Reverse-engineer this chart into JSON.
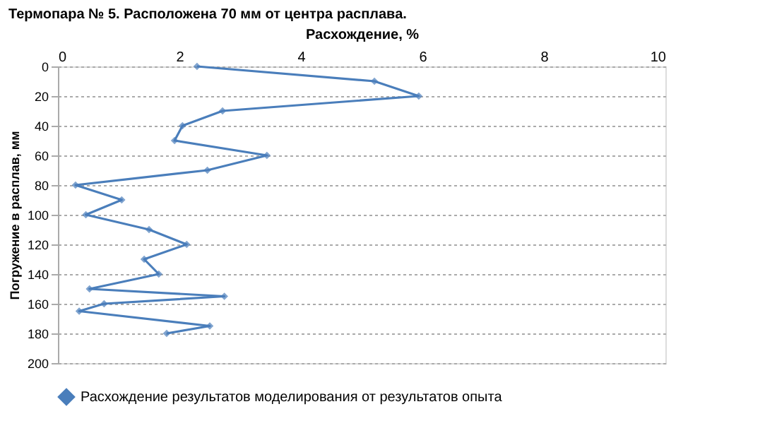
{
  "chart_data": {
    "type": "line",
    "title": "Термопара № 5. Расположена 70 мм от центра расплава.",
    "xlabel": "Расхождение, %",
    "ylabel": "Погружение в расплав, мм",
    "xlim": [
      0,
      10
    ],
    "xticks": [
      0,
      2,
      4,
      6,
      8,
      10
    ],
    "ylim": [
      200,
      0
    ],
    "yticks": [
      0,
      20,
      40,
      60,
      80,
      100,
      120,
      140,
      160,
      180,
      200
    ],
    "grid": "y",
    "legend": "bottom",
    "marker": "diamond",
    "line_style": "solid",
    "series": [
      {
        "name": "Расхождение результатов моделирования от результатов опыта",
        "color": "#4a7ebb",
        "x": [
          2.29,
          5.21,
          5.94,
          2.71,
          2.05,
          1.92,
          3.44,
          2.46,
          0.29,
          1.05,
          0.46,
          1.5,
          2.12,
          1.42,
          1.66,
          0.52,
          2.74,
          0.76,
          0.35,
          2.5,
          1.79
        ],
        "values": [
          0,
          10,
          20,
          30,
          40,
          50,
          60,
          70,
          80,
          90,
          100,
          110,
          120,
          130,
          140,
          150,
          155,
          160,
          165,
          175,
          180
        ]
      }
    ]
  }
}
